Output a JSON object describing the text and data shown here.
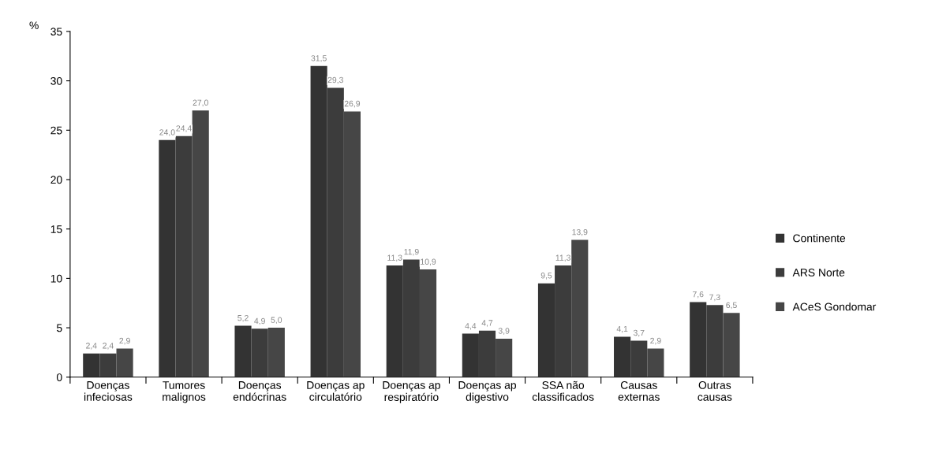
{
  "chart_data": {
    "type": "bar",
    "ylabel": "%",
    "categories": [
      "Doenças\ninfeciosas",
      "Tumores\nmalignos",
      "Doenças\nendócrinas",
      "Doenças ap\ncirculatório",
      "Doenças ap\nrespiratório",
      "Doenças ap\ndigestivo",
      "SSA não\nclassificados",
      "Causas\nexternas",
      "Outras\ncausas"
    ],
    "series": [
      {
        "name": "Continente",
        "color": "#333333",
        "values": [
          2.4,
          24.0,
          5.2,
          31.5,
          11.3,
          4.4,
          9.5,
          4.1,
          7.6
        ],
        "value_labels": [
          "2,4",
          "24,0",
          "5,2",
          "31,5",
          "11,3",
          "4,4",
          "9,5",
          "4,1",
          "7,6"
        ]
      },
      {
        "name": "ARS Norte",
        "color": "#3c3c3c",
        "values": [
          2.4,
          24.4,
          4.9,
          29.3,
          11.9,
          4.7,
          11.3,
          3.7,
          7.3
        ],
        "value_labels": [
          "2,4",
          "24,4",
          "4,9",
          "29,3",
          "11,9",
          "4,7",
          "11,3",
          "3,7",
          "7,3"
        ]
      },
      {
        "name": "ACeS Gondomar",
        "color": "#464646",
        "values": [
          2.9,
          27.0,
          5.0,
          26.9,
          10.9,
          3.9,
          13.9,
          2.9,
          6.5
        ],
        "value_labels": [
          "2,9",
          "27,0",
          "5,0",
          "26,9",
          "10,9",
          "3,9",
          "13,9",
          "2,9",
          "6,5"
        ]
      }
    ],
    "ylim": [
      0,
      35
    ],
    "yticks": [
      0,
      5,
      10,
      15,
      20,
      25,
      30,
      35
    ],
    "grid": false,
    "legend": "right"
  }
}
